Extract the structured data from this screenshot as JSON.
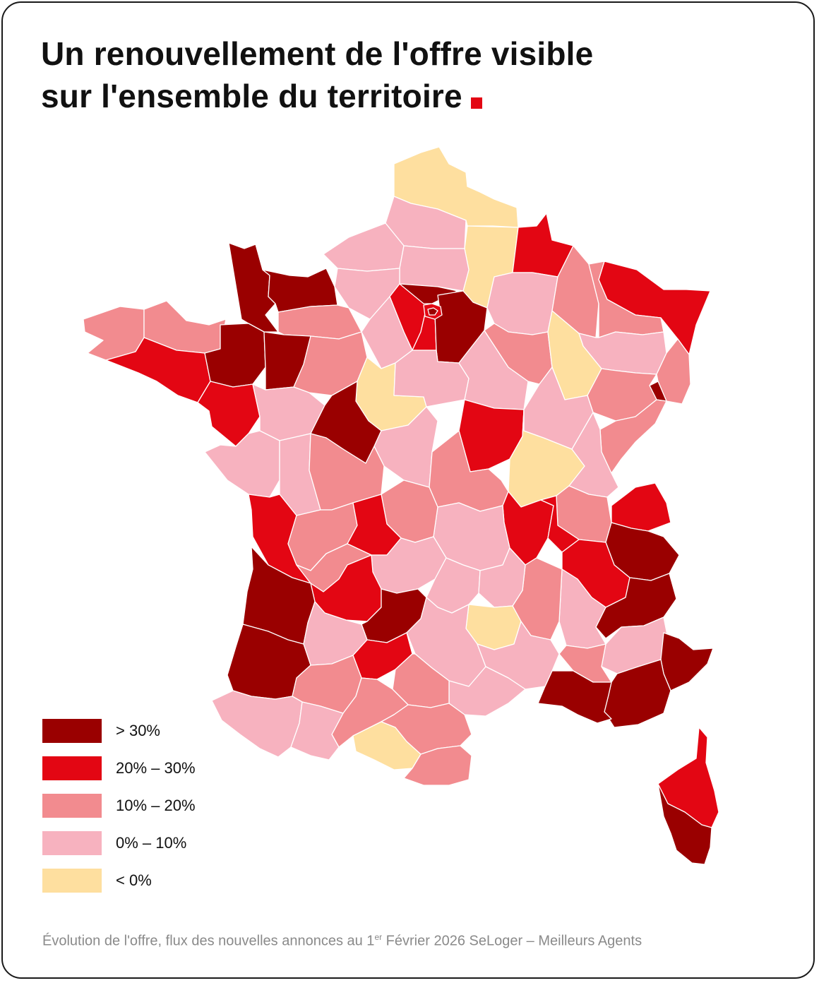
{
  "title": {
    "line1": "Un renouvellement de l'offre visible",
    "line2": "sur l'ensemble du territoire"
  },
  "colors": {
    "accent": "#e30613",
    "gt30": "#9a0000",
    "r20_30": "#e30613",
    "r10_20": "#f28b8f",
    "r0_10": "#f7b2bf",
    "lt0": "#fedf9f",
    "border": "#ffffff"
  },
  "legend": [
    {
      "label": "> 30%",
      "color": "#9a0000"
    },
    {
      "label": "20% – 30%",
      "color": "#e30613"
    },
    {
      "label": "10% – 20%",
      "color": "#f28b8f"
    },
    {
      "label": "0% – 10%",
      "color": "#f7b2bf"
    },
    {
      "label": "< 0%",
      "color": "#fedf9f"
    }
  ],
  "source": {
    "before": "Évolution de l'offre, flux des nouvelles annonces au 1",
    "sup": "er",
    "after": " Février 2026 SeLoger – Meilleurs Agents"
  }
}
